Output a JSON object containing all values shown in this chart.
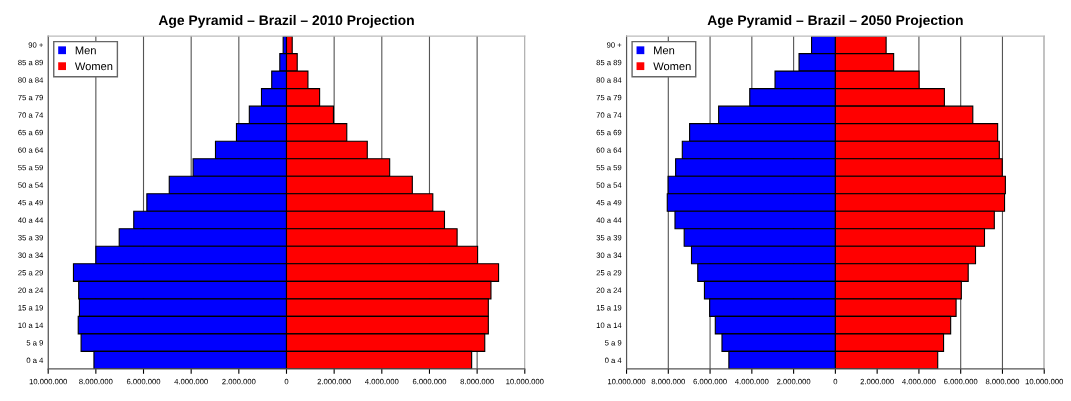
{
  "chart_data": [
    {
      "type": "bar",
      "title": "Age Pyramid – Brazil – 2010 Projection",
      "orientation": "horizontal",
      "stacked": true,
      "categories": [
        "90 +",
        "85 a 89",
        "80 a 84",
        "75 a 79",
        "70 a 74",
        "65 a 69",
        "60 a 64",
        "55 a 59",
        "50 a 54",
        "45 a 49",
        "40 a 44",
        "35 a 39",
        "30 a 34",
        "25 a 29",
        "20 a 24",
        "15 a 19",
        "10 a 14",
        "5 a 9",
        "0 a 4"
      ],
      "series": [
        {
          "name": "Men",
          "color": "#0000ff",
          "values": [
            -140000,
            -280000,
            -620000,
            -1050000,
            -1560000,
            -2100000,
            -2980000,
            -3920000,
            -4920000,
            -5860000,
            -6410000,
            -7020000,
            -8000000,
            -8940000,
            -8720000,
            -8690000,
            -8740000,
            -8620000,
            -8080000
          ]
        },
        {
          "name": "Women",
          "color": "#ff0000",
          "values": [
            240000,
            450000,
            900000,
            1390000,
            1970000,
            2530000,
            3390000,
            4330000,
            5280000,
            6140000,
            6630000,
            7160000,
            8020000,
            8900000,
            8580000,
            8470000,
            8470000,
            8320000,
            7770000
          ]
        }
      ],
      "xlim": [
        -10000000,
        10000000
      ],
      "xticks": [
        {
          "value": -10000000,
          "label": "10.000.000"
        },
        {
          "value": -8000000,
          "label": "8.000.000"
        },
        {
          "value": -6000000,
          "label": "6.000.000"
        },
        {
          "value": -4000000,
          "label": "4.000.000"
        },
        {
          "value": -2000000,
          "label": "2.000.000"
        },
        0,
        {
          "value": 2000000,
          "label": "2.000.000"
        },
        {
          "value": 4000000,
          "label": "4.000.000"
        },
        {
          "value": 6000000,
          "label": "6.000.000"
        },
        {
          "value": 8000000,
          "label": "8.000.000"
        },
        {
          "value": 10000000,
          "label": "10.000.000"
        }
      ],
      "grid": "x",
      "legend": "top left"
    },
    {
      "type": "bar",
      "title": "Age Pyramid – Brazil – 2050 Projection",
      "orientation": "horizontal",
      "stacked": true,
      "categories": [
        "90 +",
        "85 a 89",
        "80 a 84",
        "75 a 79",
        "70 a 74",
        "65 a 69",
        "60 a 64",
        "55 a 59",
        "50 a 54",
        "45 a 49",
        "40 a 44",
        "35 a 39",
        "30 a 34",
        "25 a 29",
        "20 a 24",
        "15 a 19",
        "10 a 14",
        "5 a 9",
        "0 a 4"
      ],
      "series": [
        {
          "name": "Men",
          "color": "#0000ff",
          "values": [
            -1140000,
            -1740000,
            -2890000,
            -4100000,
            -5590000,
            -6980000,
            -7330000,
            -7650000,
            -8010000,
            -8050000,
            -7680000,
            -7240000,
            -6890000,
            -6590000,
            -6270000,
            -6020000,
            -5750000,
            -5430000,
            -5100000
          ]
        },
        {
          "name": "Women",
          "color": "#ff0000",
          "values": [
            2430000,
            2790000,
            4010000,
            5220000,
            6580000,
            7770000,
            7850000,
            7990000,
            8140000,
            8100000,
            7610000,
            7140000,
            6710000,
            6360000,
            6030000,
            5780000,
            5520000,
            5180000,
            4900000
          ]
        }
      ],
      "xlim": [
        -10000000,
        10000000
      ],
      "xticks": [
        {
          "value": -10000000,
          "label": "10.000.000"
        },
        {
          "value": -8000000,
          "label": "8.000.000"
        },
        {
          "value": -6000000,
          "label": "6.000.000"
        },
        {
          "value": -4000000,
          "label": "4.000.000"
        },
        {
          "value": -2000000,
          "label": "2.000.000"
        },
        0,
        {
          "value": 2000000,
          "label": "2.000.000"
        },
        {
          "value": 4000000,
          "label": "4.000.000"
        },
        {
          "value": 6000000,
          "label": "6.000.000"
        },
        {
          "value": 8000000,
          "label": "8.000.000"
        },
        {
          "value": 10000000,
          "label": "10.000.000"
        }
      ],
      "grid": "x",
      "legend": "top left"
    }
  ]
}
